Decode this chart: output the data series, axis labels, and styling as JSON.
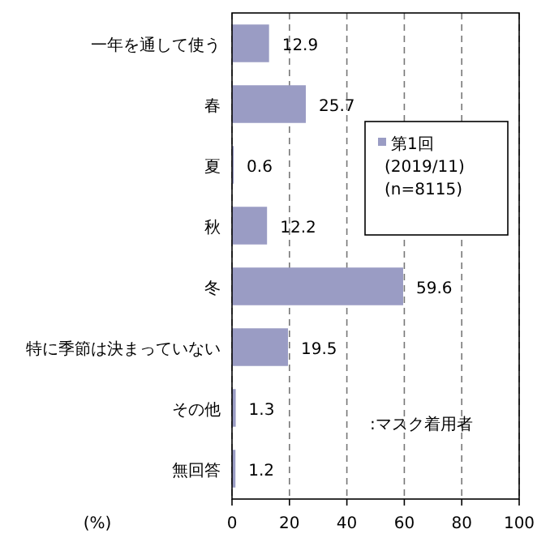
{
  "chart_data": {
    "type": "bar",
    "orientation": "horizontal",
    "categories": [
      "一年を通して使う",
      "春",
      "夏",
      "秋",
      "冬",
      "特に季節は決まっていない",
      "その他",
      "無回答"
    ],
    "series": [
      {
        "name": "第1回\n(2019/11)\n(n=8115)",
        "color": "#9a9cc4",
        "values": [
          12.9,
          25.7,
          0.6,
          12.2,
          59.6,
          19.5,
          1.3,
          1.2
        ]
      }
    ],
    "xlim": [
      0,
      100
    ],
    "xticks": [
      0,
      20,
      40,
      60,
      80,
      100
    ],
    "xlabel": "(%)",
    "grid": "x",
    "data_labels": true,
    "legend": "top right",
    "annotations": [
      ":マスク着用者"
    ]
  }
}
